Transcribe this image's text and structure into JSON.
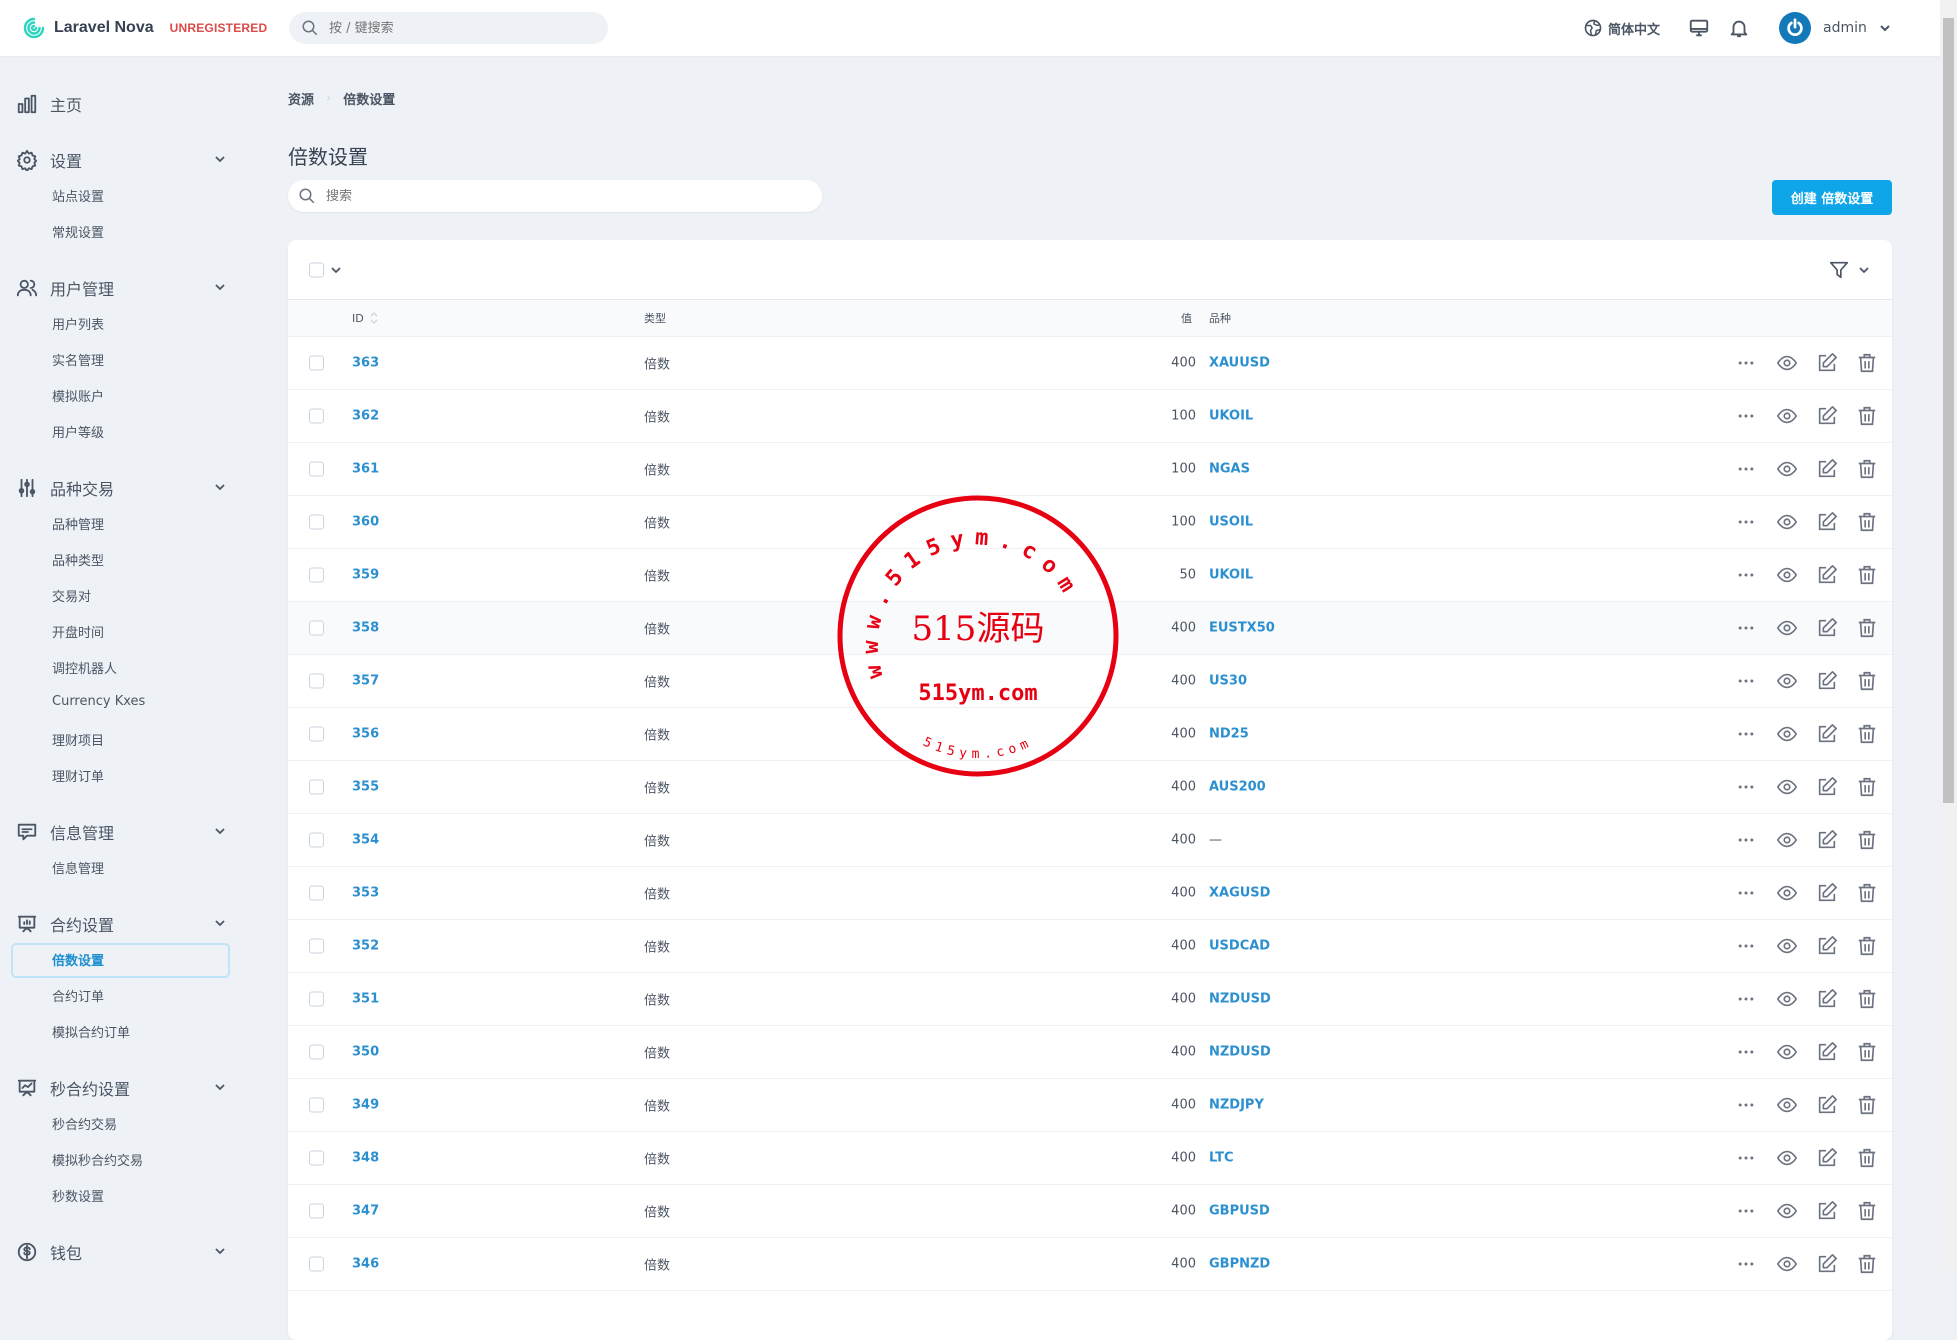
{
  "header": {
    "brand": "Laravel Nova",
    "license": "UNREGISTERED",
    "search_placeholder": "按 / 键搜索",
    "language": "简体中文",
    "user": "admin"
  },
  "sidebar": {
    "home": "主页",
    "groups": [
      {
        "label": "设置",
        "icon": "gear-icon",
        "items": [
          "站点设置",
          "常规设置"
        ]
      },
      {
        "label": "用户管理",
        "icon": "users-icon",
        "items": [
          "用户列表",
          "实名管理",
          "模拟账户",
          "用户等级"
        ]
      },
      {
        "label": "品种交易",
        "icon": "sliders-icon",
        "items": [
          "品种管理",
          "品种类型",
          "交易对",
          "开盘时间",
          "调控机器人",
          "Currency Kxes",
          "理财项目",
          "理财订单"
        ]
      },
      {
        "label": "信息管理",
        "icon": "message-icon",
        "items": [
          "信息管理"
        ]
      },
      {
        "label": "合约设置",
        "icon": "presentation-chart-icon",
        "items": [
          "倍数设置",
          "合约订单",
          "模拟合约订单"
        ]
      },
      {
        "label": "秒合约设置",
        "icon": "presentation-trend-icon",
        "items": [
          "秒合约交易",
          "模拟秒合约交易",
          "秒数设置"
        ]
      },
      {
        "label": "钱包",
        "icon": "dollar-icon",
        "items": []
      }
    ],
    "active": "倍数设置"
  },
  "breadcrumb": [
    "资源",
    "倍数设置"
  ],
  "page": {
    "title": "倍数设置",
    "search_placeholder": "搜索",
    "create_label": "创建 倍数设置"
  },
  "table": {
    "columns": {
      "id": "ID",
      "type": "类型",
      "value": "值",
      "symbol": "品种"
    },
    "rows": [
      {
        "id": "363",
        "type": "倍数",
        "value": "400",
        "symbol": "XAUUSD"
      },
      {
        "id": "362",
        "type": "倍数",
        "value": "100",
        "symbol": "UKOIL"
      },
      {
        "id": "361",
        "type": "倍数",
        "value": "100",
        "symbol": "NGAS"
      },
      {
        "id": "360",
        "type": "倍数",
        "value": "100",
        "symbol": "USOIL"
      },
      {
        "id": "359",
        "type": "倍数",
        "value": "50",
        "symbol": "UKOIL"
      },
      {
        "id": "358",
        "type": "倍数",
        "value": "400",
        "symbol": "EUSTX50"
      },
      {
        "id": "357",
        "type": "倍数",
        "value": "400",
        "symbol": "US30"
      },
      {
        "id": "356",
        "type": "倍数",
        "value": "400",
        "symbol": "ND25"
      },
      {
        "id": "355",
        "type": "倍数",
        "value": "400",
        "symbol": "AUS200"
      },
      {
        "id": "354",
        "type": "倍数",
        "value": "400",
        "symbol": "—"
      },
      {
        "id": "353",
        "type": "倍数",
        "value": "400",
        "symbol": "XAGUSD"
      },
      {
        "id": "352",
        "type": "倍数",
        "value": "400",
        "symbol": "USDCAD"
      },
      {
        "id": "351",
        "type": "倍数",
        "value": "400",
        "symbol": "NZDUSD"
      },
      {
        "id": "350",
        "type": "倍数",
        "value": "400",
        "symbol": "NZDUSD"
      },
      {
        "id": "349",
        "type": "倍数",
        "value": "400",
        "symbol": "NZDJPY"
      },
      {
        "id": "348",
        "type": "倍数",
        "value": "400",
        "symbol": "LTC"
      },
      {
        "id": "347",
        "type": "倍数",
        "value": "400",
        "symbol": "GBPUSD"
      },
      {
        "id": "346",
        "type": "倍数",
        "value": "400",
        "symbol": "GBPNZD"
      }
    ],
    "hovered_row": "358"
  },
  "watermark": {
    "outer": "www.515ym.com",
    "main": "515源码",
    "url": "515ym.com",
    "bottom": "515ym.com",
    "color": "#e60012"
  },
  "colors": {
    "accent": "#0ea5e9",
    "link": "#2b8fd0",
    "background": "#eef2f7"
  }
}
